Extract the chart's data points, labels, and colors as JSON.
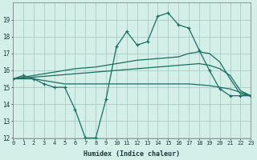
{
  "xlabel": "Humidex (Indice chaleur)",
  "background_color": "#d4eee8",
  "grid_color": "#aaccc4",
  "line_color": "#1a6e60",
  "x_values": [
    0,
    1,
    2,
    3,
    4,
    5,
    6,
    7,
    8,
    9,
    10,
    11,
    12,
    13,
    14,
    15,
    16,
    17,
    18,
    19,
    20,
    21,
    22,
    23
  ],
  "line1_y": [
    15.5,
    15.7,
    15.5,
    15.2,
    15.0,
    15.0,
    13.7,
    12.0,
    12.0,
    14.3,
    17.4,
    18.3,
    17.5,
    17.7,
    19.2,
    19.4,
    18.7,
    18.5,
    17.2,
    16.0,
    14.9,
    14.5,
    14.5,
    14.5
  ],
  "line2_y": [
    15.5,
    15.6,
    15.7,
    15.8,
    15.9,
    16.0,
    16.1,
    16.15,
    16.2,
    16.3,
    16.4,
    16.5,
    16.6,
    16.65,
    16.7,
    16.75,
    16.8,
    17.0,
    17.1,
    17.0,
    16.5,
    15.5,
    14.6,
    14.5
  ],
  "line3_y": [
    15.5,
    15.55,
    15.6,
    15.65,
    15.7,
    15.75,
    15.8,
    15.85,
    15.9,
    15.95,
    16.0,
    16.05,
    16.1,
    16.15,
    16.2,
    16.25,
    16.3,
    16.35,
    16.4,
    16.3,
    16.1,
    15.7,
    14.8,
    14.5
  ],
  "line4_y": [
    15.5,
    15.5,
    15.5,
    15.4,
    15.3,
    15.2,
    15.2,
    15.2,
    15.2,
    15.2,
    15.2,
    15.2,
    15.2,
    15.2,
    15.2,
    15.2,
    15.2,
    15.2,
    15.15,
    15.1,
    15.0,
    14.9,
    14.7,
    14.5
  ],
  "xlim": [
    0,
    23
  ],
  "ylim": [
    12,
    20
  ],
  "yticks": [
    12,
    13,
    14,
    15,
    16,
    17,
    18,
    19
  ],
  "xticks": [
    0,
    1,
    2,
    3,
    4,
    5,
    6,
    7,
    8,
    9,
    10,
    11,
    12,
    13,
    14,
    15,
    16,
    17,
    18,
    19,
    20,
    21,
    22,
    23
  ]
}
